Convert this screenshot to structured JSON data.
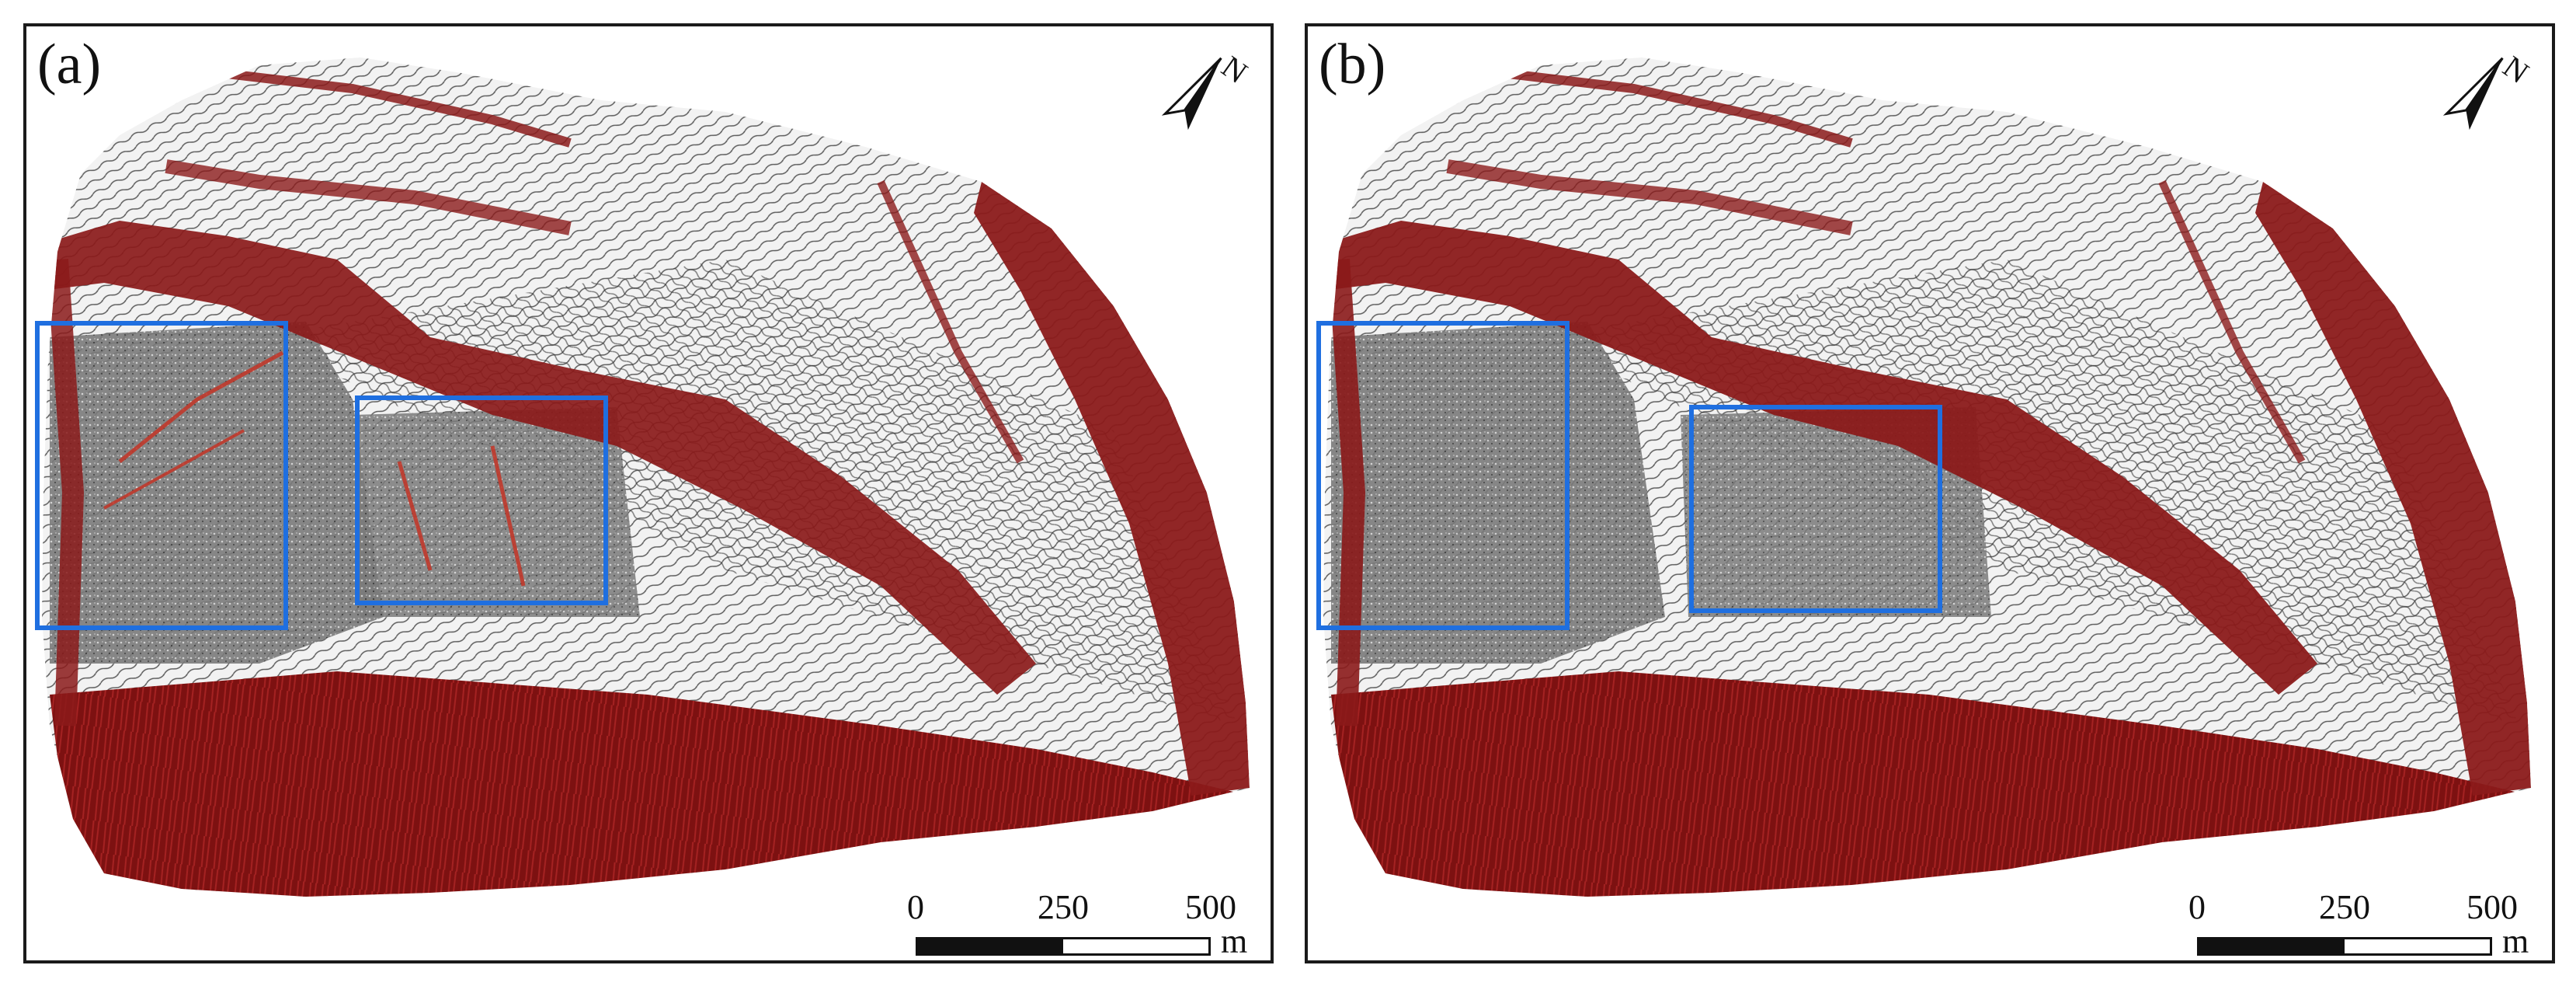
{
  "panels": [
    {
      "label": "(a)"
    },
    {
      "label": "(b)"
    }
  ],
  "north_arrow": {
    "letter": "N"
  },
  "scale_bar": {
    "ticks": [
      "0",
      "250",
      "500"
    ],
    "unit": "m"
  },
  "colors": {
    "hillshade": "#8c8c8c",
    "highlight": "#8b1a1a",
    "box": "#1f6fe0",
    "frame": "#1a1a1a"
  }
}
